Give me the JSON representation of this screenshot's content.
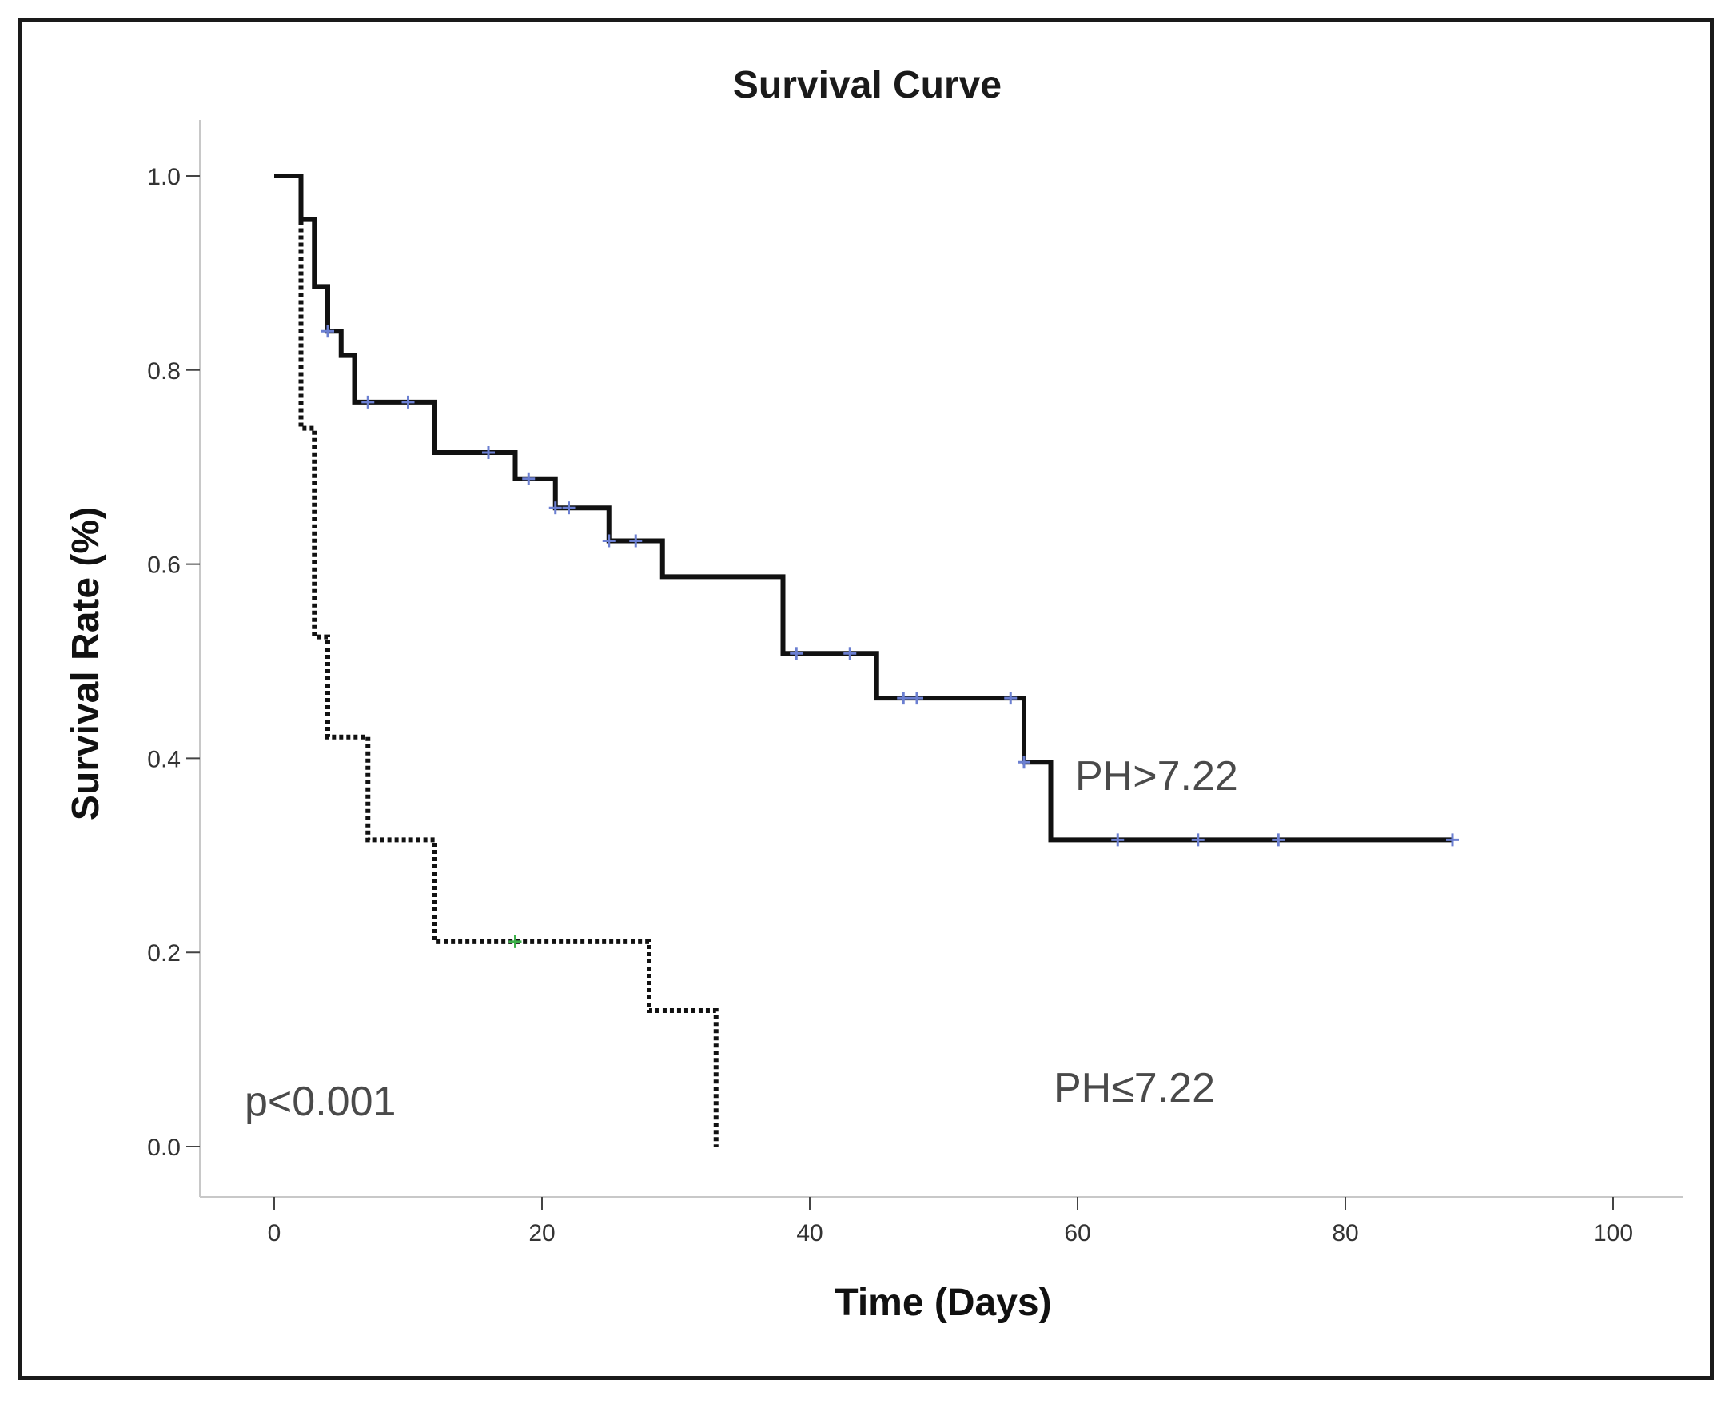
{
  "chart_data": {
    "type": "line",
    "subtype": "kaplan-meier",
    "title": "Survival Curve",
    "xlabel": "Time (Days)",
    "ylabel": "Survival Rate (%)",
    "xlim": [
      0,
      100
    ],
    "ylim": [
      0,
      1
    ],
    "xticks": [
      0,
      20,
      40,
      60,
      80,
      100
    ],
    "yticks": [
      "0.0",
      "0.2",
      "0.4",
      "0.6",
      "0.8",
      "1.0"
    ],
    "grid": false,
    "annotations": [
      "PH>7.22",
      "PH≤7.22",
      "p<0.001"
    ],
    "series": [
      {
        "name": "PH>7.22",
        "style": "solid",
        "color": "#111111",
        "censor_color": "#6b7fd1",
        "steps": [
          [
            0,
            1.0
          ],
          [
            2,
            0.955
          ],
          [
            3,
            0.886
          ],
          [
            4,
            0.84
          ],
          [
            5,
            0.815
          ],
          [
            6,
            0.767
          ],
          [
            12,
            0.715
          ],
          [
            18,
            0.688
          ],
          [
            21,
            0.658
          ],
          [
            25,
            0.624
          ],
          [
            29,
            0.587
          ],
          [
            38,
            0.508
          ],
          [
            45,
            0.462
          ],
          [
            56,
            0.396
          ],
          [
            58,
            0.316
          ],
          [
            88,
            0.316
          ]
        ],
        "censored": [
          [
            4,
            0.84
          ],
          [
            7,
            0.767
          ],
          [
            10,
            0.767
          ],
          [
            16,
            0.715
          ],
          [
            19,
            0.688
          ],
          [
            21,
            0.658
          ],
          [
            22,
            0.658
          ],
          [
            25,
            0.624
          ],
          [
            27,
            0.624
          ],
          [
            39,
            0.508
          ],
          [
            43,
            0.508
          ],
          [
            47,
            0.462
          ],
          [
            48,
            0.462
          ],
          [
            55,
            0.462
          ],
          [
            56,
            0.396
          ],
          [
            63,
            0.316
          ],
          [
            69,
            0.316
          ],
          [
            75,
            0.316
          ],
          [
            88,
            0.316
          ]
        ]
      },
      {
        "name": "PH≤7.22",
        "style": "dotted",
        "color": "#111111",
        "censor_color": "#3db04a",
        "steps": [
          [
            0,
            1.0
          ],
          [
            2,
            0.74
          ],
          [
            3,
            0.525
          ],
          [
            4,
            0.422
          ],
          [
            7,
            0.316
          ],
          [
            12,
            0.211
          ],
          [
            28,
            0.14
          ],
          [
            33,
            0.0
          ]
        ],
        "censored": [
          [
            18,
            0.211
          ]
        ]
      }
    ]
  }
}
